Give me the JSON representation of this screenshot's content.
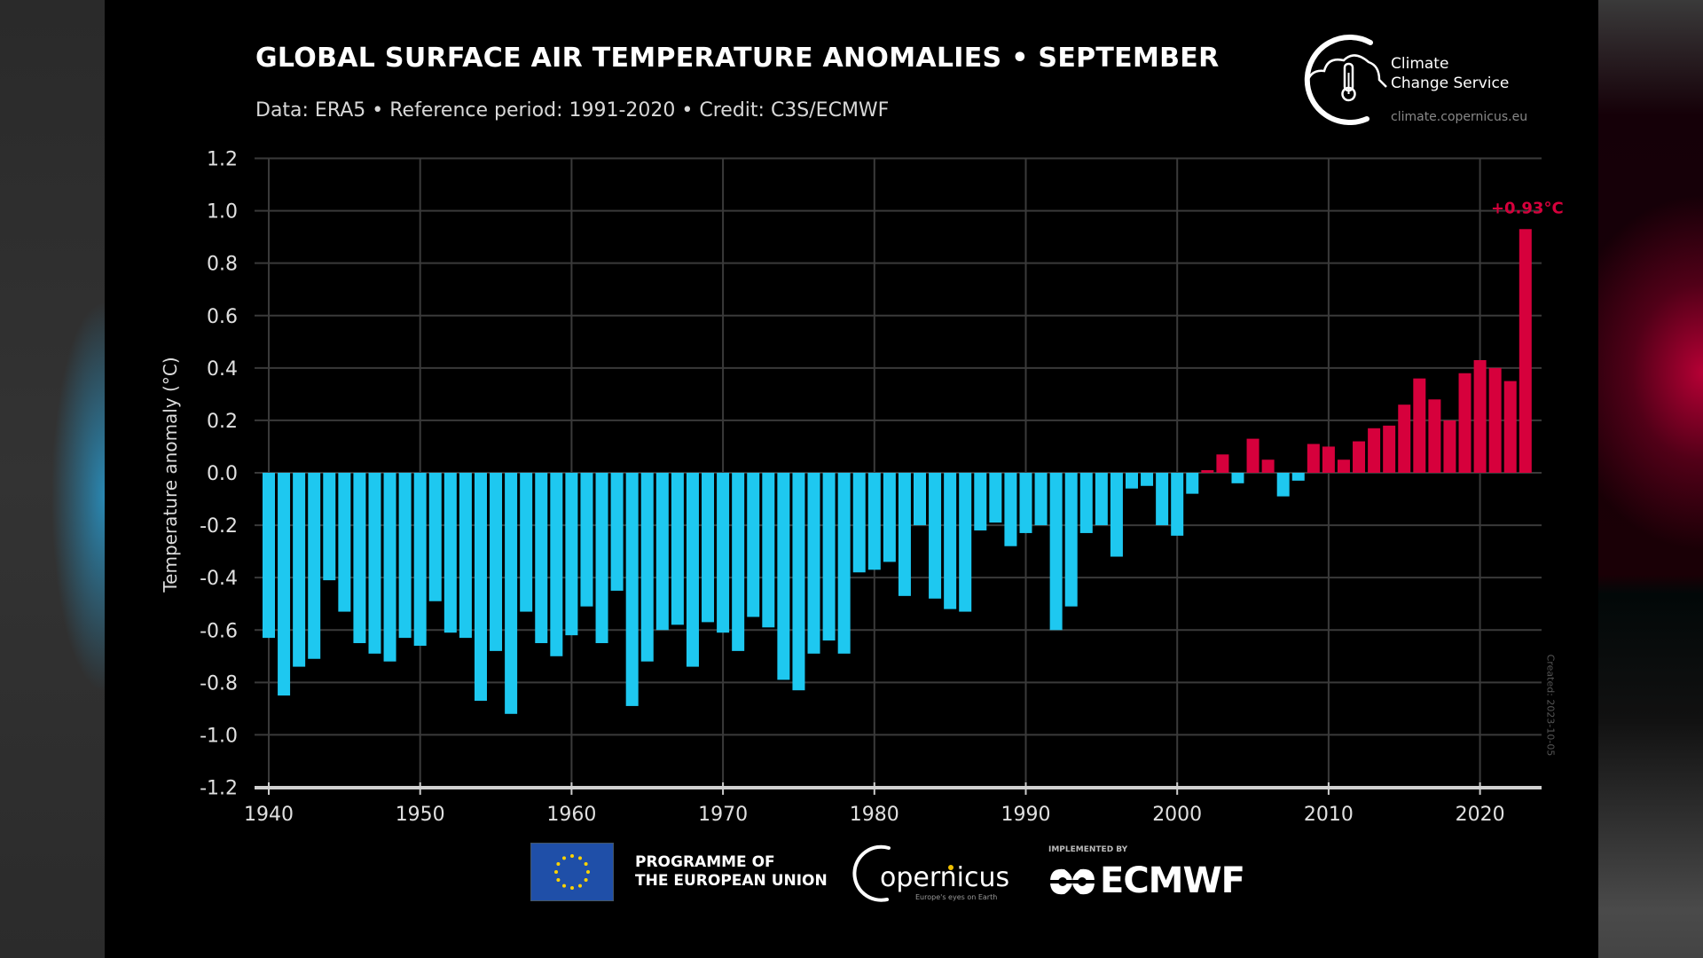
{
  "header": {
    "title": "GLOBAL SURFACE AIR TEMPERATURE ANOMALIES • SEPTEMBER",
    "subtitle": "Data: ERA5 • Reference period: 1991-2020 • Credit: C3S/ECMWF"
  },
  "logos": {
    "c3s_line1": "Climate",
    "c3s_line2": "Change Service",
    "c3s_url": "climate.copernicus.eu",
    "eu_line1": "PROGRAMME OF",
    "eu_line2": "THE EUROPEAN UNION",
    "copernicus": "opernicus",
    "copernicus_sub": "Europe's eyes on Earth",
    "ecmwf_implemented": "IMPLEMENTED BY",
    "ecmwf": "ECMWF"
  },
  "created_note": "Created: 2023-10-05",
  "colors": {
    "negative": "#1ec8f0",
    "positive": "#d6003c",
    "grid": "#3a3a3a",
    "background": "#000000"
  },
  "chart_data": {
    "type": "bar",
    "title": "GLOBAL SURFACE AIR TEMPERATURE ANOMALIES • SEPTEMBER",
    "xlabel": "",
    "ylabel": "Temperature anomaly (°C)",
    "ylim": [
      -1.2,
      1.2
    ],
    "yticks": [
      1.2,
      1.0,
      0.8,
      0.6,
      0.4,
      0.2,
      0.0,
      -0.2,
      -0.4,
      -0.6,
      -0.8,
      -1.0,
      -1.2
    ],
    "ytick_labels": [
      "1.2",
      "1.0",
      "0.8",
      "0.6",
      "0.4",
      "0.2",
      "0.0",
      "-0.2",
      "-0.4",
      "-0.6",
      "-0.8",
      "-1.0",
      "-1.2"
    ],
    "xticks": [
      1940,
      1950,
      1960,
      1970,
      1980,
      1990,
      2000,
      2010,
      2020
    ],
    "xlim": [
      1939.4,
      2024.5
    ],
    "grid": true,
    "annotation": {
      "year": 2023,
      "text": "+0.93°C"
    },
    "categories": [
      1940,
      1941,
      1942,
      1943,
      1944,
      1945,
      1946,
      1947,
      1948,
      1949,
      1950,
      1951,
      1952,
      1953,
      1954,
      1955,
      1956,
      1957,
      1958,
      1959,
      1960,
      1961,
      1962,
      1963,
      1964,
      1965,
      1966,
      1967,
      1968,
      1969,
      1970,
      1971,
      1972,
      1973,
      1974,
      1975,
      1976,
      1977,
      1978,
      1979,
      1980,
      1981,
      1982,
      1983,
      1984,
      1985,
      1986,
      1987,
      1988,
      1989,
      1990,
      1991,
      1992,
      1993,
      1994,
      1995,
      1996,
      1997,
      1998,
      1999,
      2000,
      2001,
      2002,
      2003,
      2004,
      2005,
      2006,
      2007,
      2008,
      2009,
      2010,
      2011,
      2012,
      2013,
      2014,
      2015,
      2016,
      2017,
      2018,
      2019,
      2020,
      2021,
      2022,
      2023
    ],
    "values": [
      -0.63,
      -0.85,
      -0.74,
      -0.71,
      -0.41,
      -0.53,
      -0.65,
      -0.69,
      -0.72,
      -0.63,
      -0.66,
      -0.49,
      -0.61,
      -0.63,
      -0.87,
      -0.68,
      -0.92,
      -0.53,
      -0.65,
      -0.7,
      -0.62,
      -0.51,
      -0.65,
      -0.45,
      -0.89,
      -0.72,
      -0.6,
      -0.58,
      -0.74,
      -0.57,
      -0.61,
      -0.68,
      -0.55,
      -0.59,
      -0.79,
      -0.83,
      -0.69,
      -0.64,
      -0.69,
      -0.38,
      -0.37,
      -0.34,
      -0.47,
      -0.2,
      -0.48,
      -0.52,
      -0.53,
      -0.22,
      -0.19,
      -0.28,
      -0.23,
      -0.2,
      -0.6,
      -0.51,
      -0.23,
      -0.2,
      -0.32,
      -0.06,
      -0.05,
      -0.2,
      -0.24,
      -0.08,
      0.01,
      0.07,
      -0.04,
      0.13,
      0.05,
      -0.09,
      -0.03,
      0.11,
      0.1,
      0.05,
      0.12,
      0.17,
      0.18,
      0.26,
      0.36,
      0.28,
      0.2,
      0.38,
      0.43,
      0.4,
      0.35,
      0.93
    ]
  }
}
